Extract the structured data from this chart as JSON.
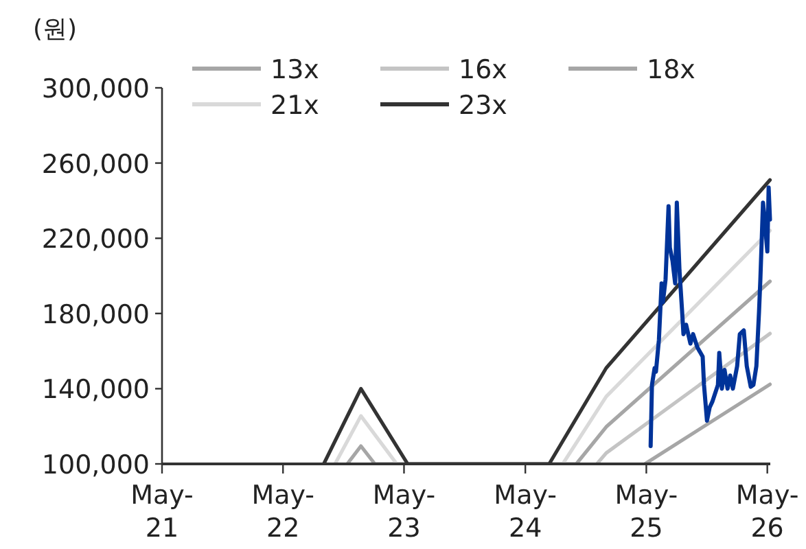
{
  "chart_data": {
    "type": "line",
    "ylabel": "(원)",
    "legend": "top",
    "grid": false,
    "marker": "none",
    "line_style": "solid",
    "xlim": [
      "2021-05-01",
      "2026-05-10"
    ],
    "xticks": [
      {
        "value": "2021-05-01",
        "label": "May-21"
      },
      {
        "value": "2022-05-01",
        "label": "May-22"
      },
      {
        "value": "2023-05-01",
        "label": "May-23"
      },
      {
        "value": "2024-05-01",
        "label": "May-24"
      },
      {
        "value": "2025-05-01",
        "label": "May-25"
      },
      {
        "value": "2026-05-01",
        "label": "May-26"
      }
    ],
    "ylim": [
      100000,
      300000
    ],
    "yticks": [
      {
        "value": 100000,
        "label": "100,000"
      },
      {
        "value": 140000,
        "label": "140,000"
      },
      {
        "value": 180000,
        "label": "180,000"
      },
      {
        "value": 220000,
        "label": "220,000"
      },
      {
        "value": 260000,
        "label": "260,000"
      },
      {
        "value": 300000,
        "label": "300,000"
      }
    ],
    "series": [
      {
        "name": "13x",
        "color": "#a6a6a6",
        "x": [
          "2025-04-27",
          "2026-05-09"
        ],
        "values": [
          100000,
          142300
        ]
      },
      {
        "name": "16x",
        "color": "#c4c4c4",
        "x": [
          "2024-12-03",
          "2024-12-31",
          "2026-05-09"
        ],
        "values": [
          100000,
          105800,
          169300
        ]
      },
      {
        "name": "18x",
        "color": "#a6a6a6",
        "x": [
          "2022-11-11",
          "2022-12-22",
          "2023-02-02",
          "2024-10-02",
          "2024-12-31",
          "2026-05-09"
        ],
        "values": [
          100000,
          109500,
          100000,
          100000,
          119700,
          197100
        ]
      },
      {
        "name": "21x",
        "color": "#d9d9d9",
        "x": [
          "2022-10-05",
          "2022-12-22",
          "2023-04-09",
          "2024-08-22",
          "2024-12-31",
          "2026-05-09"
        ],
        "values": [
          100000,
          125500,
          100000,
          100000,
          135800,
          224100
        ]
      },
      {
        "name": "23x",
        "color": "#333333",
        "x": [
          "2022-09-01",
          "2022-12-22",
          "2023-05-12",
          "2024-07-12",
          "2024-12-31",
          "2026-05-09"
        ],
        "values": [
          100000,
          140000,
          100000,
          100000,
          151000,
          251000
        ]
      },
      {
        "color": "#003399",
        "x": [
          "2025-05-14",
          "2025-05-18",
          "2025-05-26",
          "2025-05-30",
          "2025-06-08",
          "2025-06-16",
          "2025-06-20",
          "2025-06-28",
          "2025-07-07",
          "2025-07-11",
          "2025-07-19",
          "2025-07-27",
          "2025-08-01",
          "2025-08-09",
          "2025-08-17",
          "2025-08-21",
          "2025-08-29",
          "2025-09-11",
          "2025-09-19",
          "2025-10-02",
          "2025-10-18",
          "2025-10-22",
          "2025-10-31",
          "2025-11-08",
          "2025-11-16",
          "2025-12-03",
          "2025-12-07",
          "2025-12-15",
          "2025-12-23",
          "2026-01-01",
          "2026-01-09",
          "2026-01-17",
          "2026-01-30",
          "2026-02-07",
          "2026-02-19",
          "2026-02-28",
          "2026-03-12",
          "2026-03-20",
          "2026-03-29",
          "2026-04-06",
          "2026-04-10",
          "2026-04-18",
          "2026-04-22",
          "2026-05-01",
          "2026-05-05",
          "2026-05-09"
        ],
        "values": [
          109500,
          142000,
          151000,
          149000,
          166000,
          196000,
          186000,
          198000,
          237000,
          215000,
          208000,
          196000,
          239000,
          203000,
          181000,
          169000,
          174000,
          164000,
          169000,
          162000,
          157000,
          142000,
          123000,
          130000,
          133000,
          142000,
          159000,
          140000,
          150000,
          140000,
          147000,
          140000,
          152000,
          169000,
          171000,
          152000,
          141000,
          142000,
          152000,
          181000,
          198000,
          239000,
          232000,
          213000,
          247000,
          230000
        ]
      }
    ]
  }
}
